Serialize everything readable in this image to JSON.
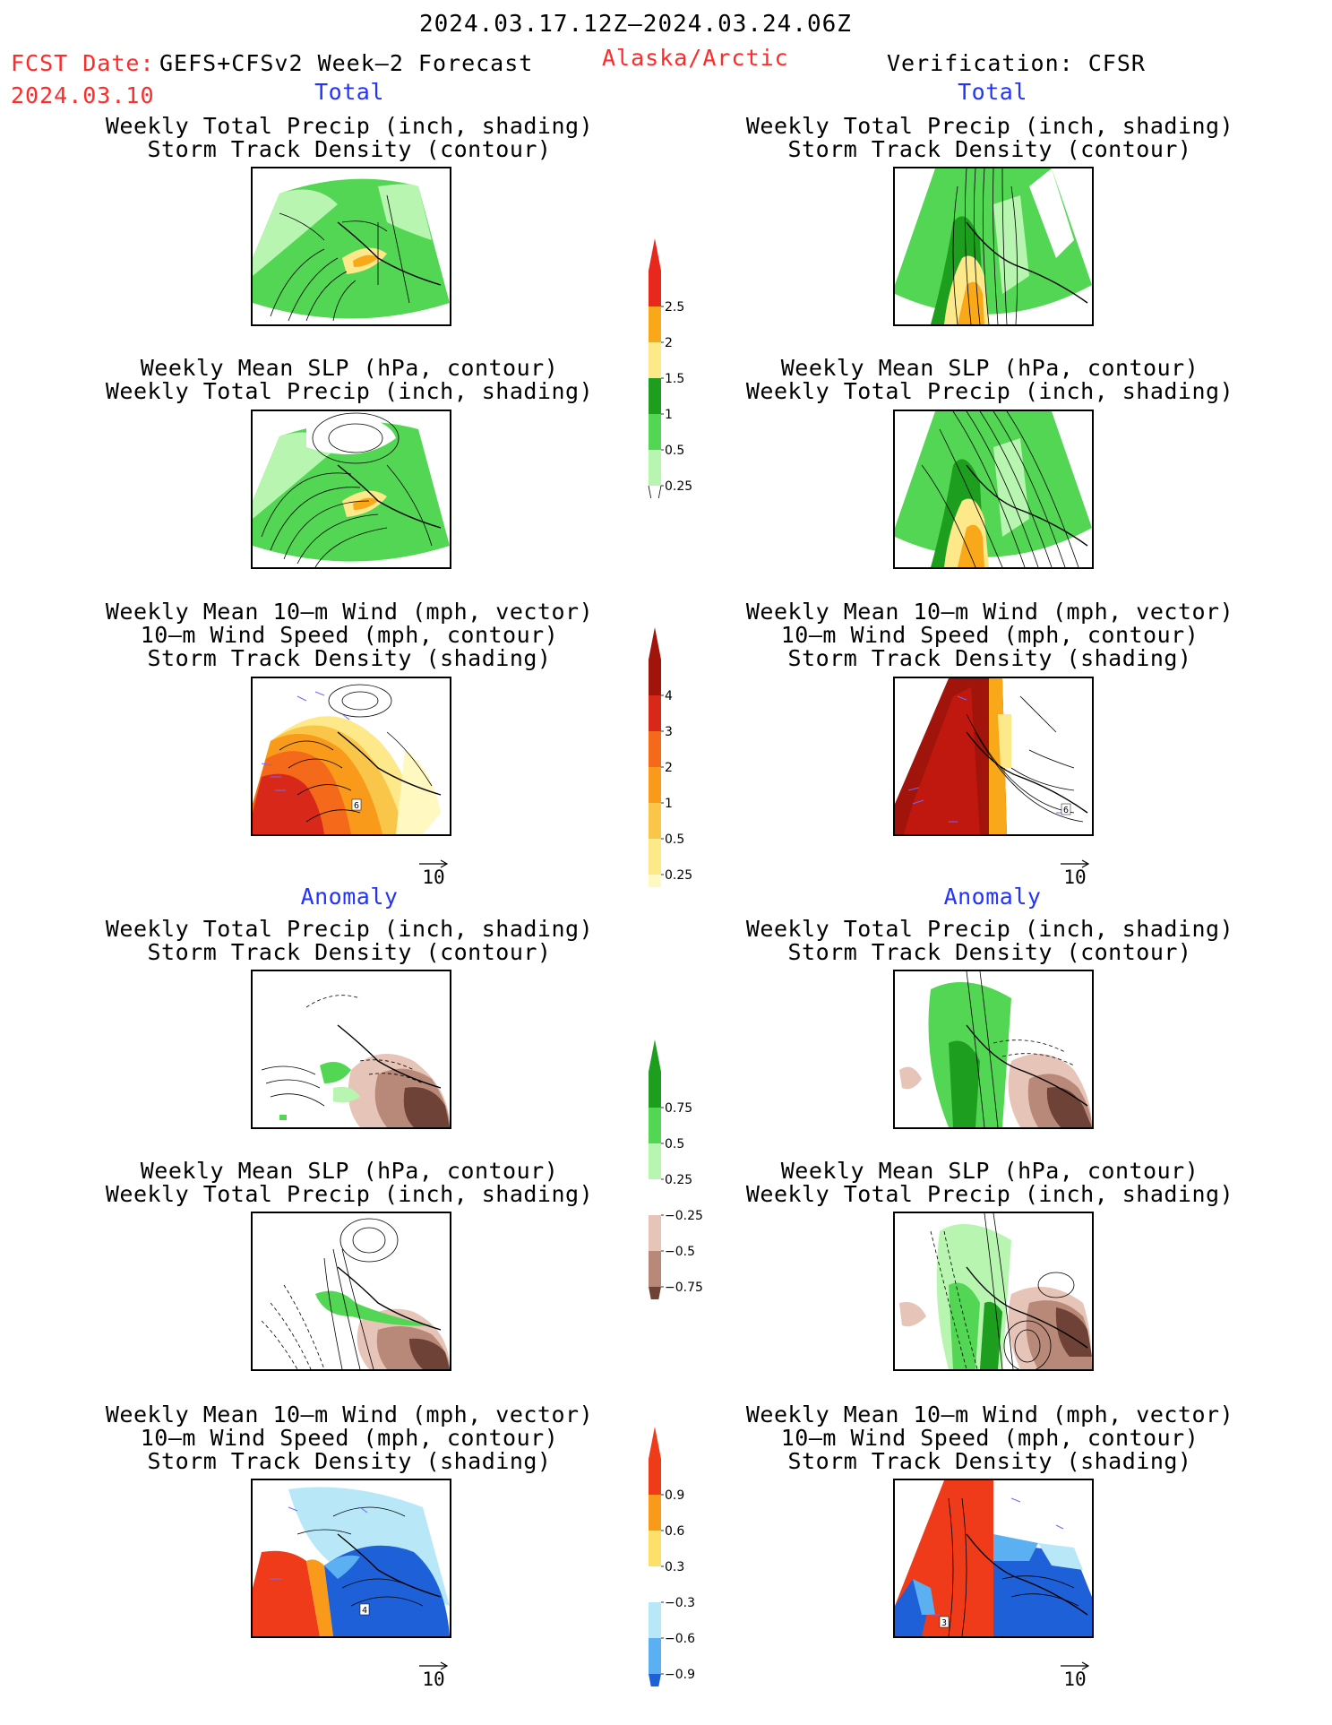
{
  "header": {
    "date_range": "2024.03.17.12Z–2024.03.24.06Z",
    "fcst_label": "FCST Date:",
    "fcst_model": "GEFS+CFSv2 Week–2 Forecast",
    "fcst_date": "2024.03.10",
    "region": "Alaska/Arctic",
    "verification": "Verification: CFSR"
  },
  "sections": {
    "total": "Total",
    "anomaly": "Anomaly"
  },
  "panel_titles": {
    "precip_storm": [
      "Weekly Total Precip (inch, shading)",
      "Storm Track Density (contour)"
    ],
    "slp_precip": [
      "Weekly Mean SLP (hPa, contour)",
      "Weekly Total Precip (inch, shading)"
    ],
    "wind_storm": [
      "Weekly Mean 10–m Wind (mph, vector)",
      "10–m Wind Speed (mph, contour)",
      "Storm Track Density (shading)"
    ]
  },
  "vector_scale": "10",
  "colorbars": {
    "precip_total": {
      "labels": [
        "2.5",
        "2",
        "1.5",
        "1",
        "0.5",
        "0.25"
      ],
      "colors": [
        "#e8281c",
        "#f9a81a",
        "#fde88a",
        "#1e9e1e",
        "#53d653",
        "#b8f5b0"
      ]
    },
    "storm_total": {
      "labels": [
        "4",
        "3",
        "2",
        "1",
        "0.5",
        "0.25"
      ],
      "colors": [
        "#a0140c",
        "#d8281a",
        "#f46a1a",
        "#f99a1a",
        "#f9c64a",
        "#fde88a",
        "#fff8c0"
      ]
    },
    "precip_anom": {
      "labels": [
        "0.75",
        "0.5",
        "0.25",
        "−0.25",
        "−0.5",
        "−0.75"
      ],
      "colors": [
        "#1e9e1e",
        "#53d653",
        "#b8f5b0",
        "#ffffff",
        "#e6c4b8",
        "#b88878",
        "#6e4236"
      ]
    },
    "storm_anom": {
      "labels": [
        "0.9",
        "0.6",
        "0.3",
        "−0.3",
        "−0.6",
        "−0.9"
      ],
      "colors": [
        "#ef3b1a",
        "#f99a1a",
        "#fde06a",
        "#ffffff",
        "#b8e8f8",
        "#5ab0f0",
        "#1e60d8"
      ]
    }
  },
  "contour_labels": {
    "left_total_wind": "6",
    "right_total_wind": "6",
    "left_anom_wind": "4",
    "right_anom_wind": "3"
  }
}
